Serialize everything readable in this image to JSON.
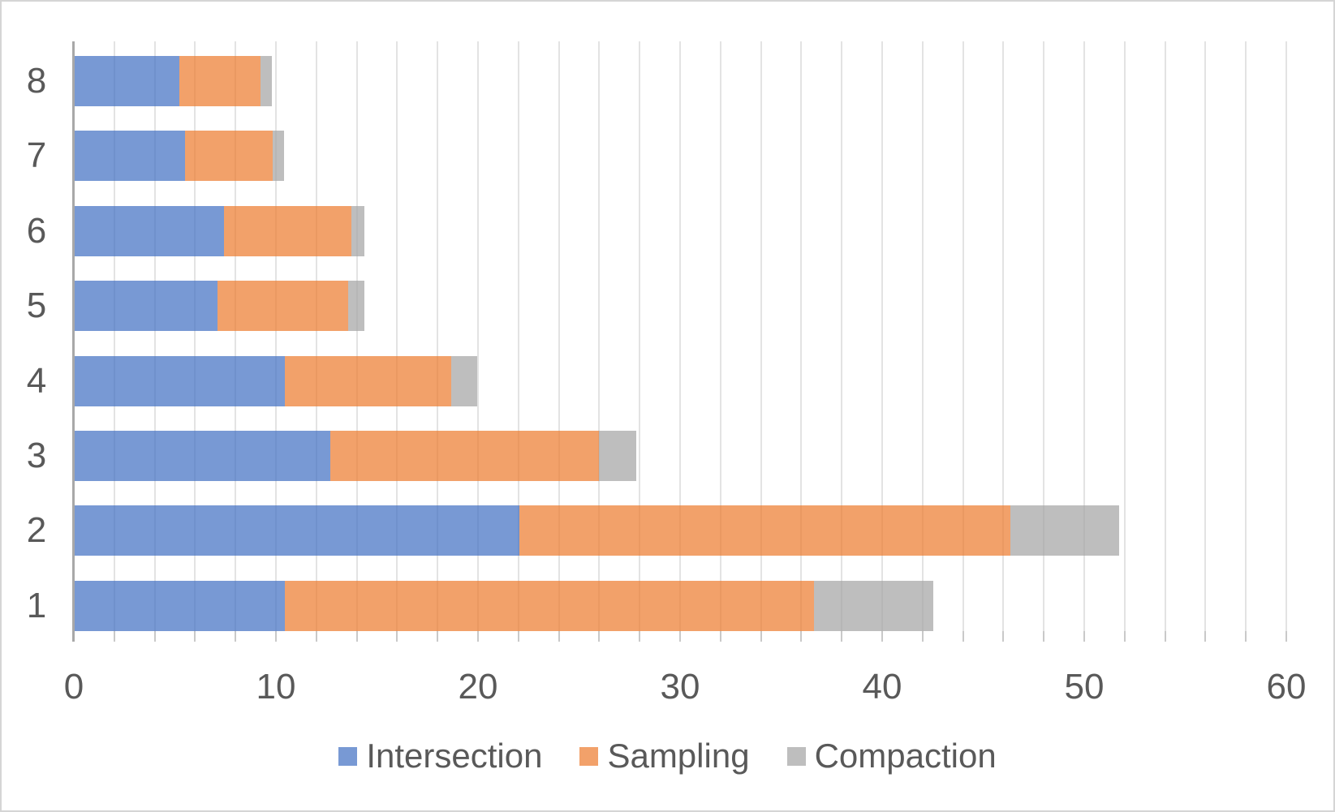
{
  "chart_data": {
    "type": "bar",
    "orientation": "horizontal",
    "stacked": true,
    "title": "",
    "xlabel": "",
    "ylabel": "",
    "categories": [
      "8",
      "7",
      "6",
      "5",
      "4",
      "3",
      "2",
      "1"
    ],
    "series": [
      {
        "name": "Intersection",
        "color": "#4472C4",
        "values": [
          5.2,
          5.45,
          7.4,
          7.05,
          10.4,
          12.65,
          22.0,
          10.4
        ]
      },
      {
        "name": "Sampling",
        "color": "#ED7D31",
        "values": [
          4.0,
          4.35,
          6.3,
          6.5,
          8.25,
          13.3,
          24.3,
          26.2
        ]
      },
      {
        "name": "Compaction",
        "color": "#A5A5A5",
        "values": [
          0.55,
          0.55,
          0.65,
          0.8,
          1.25,
          1.85,
          5.4,
          5.9
        ]
      }
    ],
    "totals": [
      9.75,
      10.35,
      14.35,
      14.35,
      19.9,
      27.8,
      51.7,
      42.5
    ],
    "x_axis": {
      "min": 0,
      "max": 60,
      "tick_step": 10,
      "minor_gridline_step": 2,
      "tick_labels": [
        "0",
        "10",
        "20",
        "30",
        "40",
        "50",
        "60"
      ]
    },
    "legend": {
      "position": "bottom",
      "entries": [
        "Intersection",
        "Sampling",
        "Compaction"
      ]
    },
    "style": {
      "bar_opacity": 0.72,
      "text_color": "#595959",
      "gridline_color": "#E3E3E3",
      "tick_color": "#C9C9C9",
      "axis_line_color": "#A8A8A8",
      "background": "#FFFFFF",
      "frame_border_color": "#D5D5D5"
    }
  }
}
